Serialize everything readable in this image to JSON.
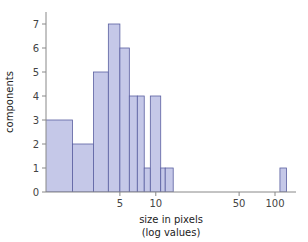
{
  "chart_data": {
    "type": "bar",
    "xlabel": "size in pixels\n(log values)",
    "ylabel": "components",
    "x": [
      [
        1.0,
        2.0
      ],
      [
        2.0,
        3.0
      ],
      [
        3.0,
        4.0
      ],
      [
        4.0,
        5.0
      ],
      [
        5.0,
        6.0
      ],
      [
        6.0,
        7.0
      ],
      [
        7.0,
        8.0
      ],
      [
        8.0,
        9.0
      ],
      [
        9.0,
        11.0
      ],
      [
        11.0,
        12.0
      ],
      [
        12.0,
        14.0
      ],
      [
        110.0,
        125.0
      ]
    ],
    "values": [
      3,
      2,
      5,
      7,
      6,
      4,
      4,
      1,
      4,
      1,
      1,
      1
    ],
    "color": "#c5c8e8",
    "log": "x",
    "xlim": [
      1.2,
      150.0
    ],
    "xticks": [
      5,
      10,
      50,
      100
    ],
    "ylim": [
      0,
      7.5
    ],
    "yticks": [
      0,
      1,
      2,
      3,
      4,
      5,
      6,
      7
    ],
    "grid": false
  }
}
